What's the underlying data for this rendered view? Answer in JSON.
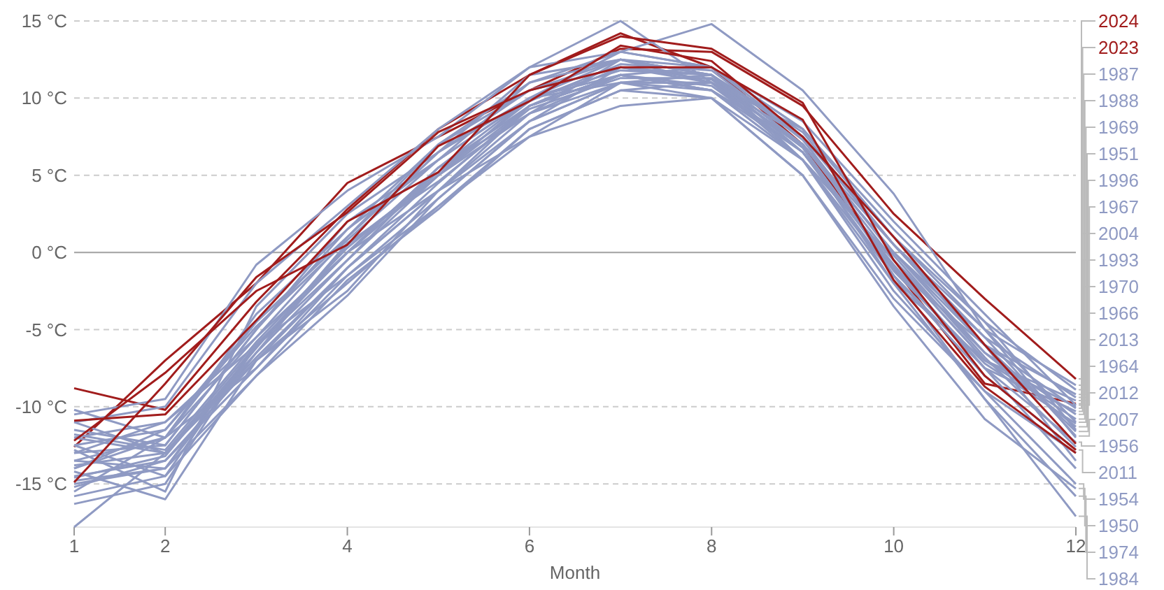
{
  "chart_data": {
    "type": "line",
    "xlabel": "Month",
    "x": [
      1,
      2,
      3,
      4,
      5,
      6,
      7,
      8,
      9,
      10,
      11,
      12
    ],
    "xlim": [
      1,
      12
    ],
    "xticks": [
      1,
      2,
      4,
      6,
      8,
      10,
      12
    ],
    "ylim": [
      -17.8,
      15
    ],
    "yticks": [
      {
        "value": -15,
        "label": "-15 °C"
      },
      {
        "value": -10,
        "label": "-10 °C"
      },
      {
        "value": -5,
        "label": "-5 °C"
      },
      {
        "value": 0,
        "label": "0 °C"
      },
      {
        "value": 5,
        "label": "5 °C"
      },
      {
        "value": 10,
        "label": "10 °C"
      },
      {
        "value": 15,
        "label": "15 °C"
      }
    ],
    "grid": "y",
    "legend": "right",
    "marker": "none",
    "line_style": "solid",
    "ref_lines": [
      {
        "axis": "y",
        "value": 0,
        "color": "#aaaaaa"
      }
    ],
    "series": [
      {
        "name": "2024",
        "color": "#a11c1c",
        "values": [
          -12.6,
          -7,
          -2,
          4.5,
          7.5,
          10.5,
          13.2,
          13,
          9.5,
          2.5,
          -3,
          -8.2
        ]
      },
      {
        "name": "2023",
        "color": "#a11c1c",
        "values": [
          -8.8,
          -10.2,
          -3.2,
          2.8,
          8,
          11.5,
          14.2,
          12,
          7,
          -1,
          -8.5,
          -9.8
        ]
      },
      {
        "color": "#8f9ac3",
        "values": [
          -10.5,
          -9.5,
          -0.8,
          4,
          7.5,
          12,
          15,
          11,
          8,
          1,
          -4.5,
          -11.5
        ]
      },
      {
        "color": "#8f9ac3",
        "values": [
          -11,
          -10,
          -2,
          3,
          8,
          12,
          13,
          14.8,
          10.5,
          3.8,
          -5,
          -12
        ]
      },
      {
        "color": "#8f9ac3",
        "values": [
          -14,
          -12,
          -5.5,
          0,
          4,
          7.5,
          9.5,
          10,
          5,
          -3,
          -9,
          -13
        ]
      },
      {
        "color": "#8f9ac3",
        "values": [
          -15.8,
          -14.5,
          -8,
          -1.8,
          2.8,
          8,
          10.5,
          10,
          6,
          -0.5,
          -7,
          -10
        ]
      },
      {
        "color": "#8f9ac3",
        "values": [
          -12.5,
          -11.5,
          -4.8,
          0.8,
          6,
          10,
          11.8,
          11.5,
          7.8,
          0.5,
          -6,
          -13.5
        ]
      },
      {
        "color": "#8f9ac3",
        "values": [
          -13.5,
          -14,
          -6,
          -0.5,
          5.5,
          9.5,
          11.5,
          10.8,
          6.5,
          -0.8,
          -7.5,
          -14
        ]
      },
      {
        "color": "#8f9ac3",
        "values": [
          -11.8,
          -12.8,
          -5.8,
          0.3,
          5.2,
          9.8,
          12.2,
          11.8,
          7.3,
          -0.2,
          -6.8,
          -12.6
        ]
      },
      {
        "color": "#8f9ac3",
        "values": [
          -14.6,
          -13.2,
          -6.2,
          0.6,
          4.6,
          9.3,
          11.3,
          11.3,
          6.8,
          -1.2,
          -7.2,
          -11.1
        ]
      },
      {
        "name": "1987",
        "color": "#8f9ac3",
        "values": [
          -13.5,
          -12,
          -4,
          1.5,
          6,
          10,
          12.5,
          11,
          7.5,
          0.5,
          -5,
          -8.6
        ]
      },
      {
        "name": "1988",
        "color": "#8f9ac3",
        "values": [
          -11,
          -13,
          -6,
          0,
          5,
          9.5,
          11.5,
          12,
          8,
          1.5,
          -4.5,
          -8.9
        ]
      },
      {
        "name": "1969",
        "color": "#8f9ac3",
        "values": [
          -14.5,
          -13.5,
          -7,
          -1,
          4,
          9,
          11,
          11.5,
          6.5,
          -1,
          -6,
          -9.2
        ]
      },
      {
        "name": "1951",
        "color": "#8f9ac3",
        "values": [
          -12,
          -11,
          -5.5,
          1,
          6.5,
          10.5,
          12,
          11,
          7,
          0,
          -5.5,
          -9.4
        ]
      },
      {
        "name": "1996",
        "color": "#8f9ac3",
        "values": [
          -15,
          -14,
          -6.5,
          -0.5,
          5,
          9,
          12.5,
          11.5,
          6,
          -0.5,
          -7,
          -9.6
        ]
      },
      {
        "name": "1967",
        "color": "#8f9ac3",
        "values": [
          -13,
          -12.5,
          -5,
          2,
          6,
          11,
          13,
          12,
          8.5,
          2,
          -4,
          -9.9
        ]
      },
      {
        "name": "2004",
        "color": "#8f9ac3",
        "values": [
          -14,
          -11.5,
          -4.5,
          1,
          6.5,
          10,
          11.5,
          10.5,
          7,
          0,
          -6,
          -10.1
        ]
      },
      {
        "name": "1993",
        "color": "#8f9ac3",
        "values": [
          -12.5,
          -14.5,
          -6,
          -1.5,
          3.5,
          8.5,
          11,
          11,
          6.5,
          -1.5,
          -7.5,
          -10.3
        ]
      },
      {
        "name": "1970",
        "color": "#8f9ac3",
        "values": [
          -15.5,
          -12,
          -7.5,
          -1,
          4.5,
          9.5,
          12,
          11.5,
          7,
          -0.5,
          -6.5,
          -10.5
        ]
      },
      {
        "name": "1966",
        "color": "#8f9ac3",
        "values": [
          -16.3,
          -15,
          -6,
          0,
          5.5,
          9,
          11.5,
          10.5,
          6,
          -2,
          -7,
          -10.8
        ]
      },
      {
        "name": "2013",
        "color": "#8f9ac3",
        "values": [
          -11.5,
          -12.5,
          -5,
          1.5,
          7,
          11,
          12.5,
          12,
          8,
          1,
          -5,
          -11
        ]
      },
      {
        "name": "1964",
        "color": "#8f9ac3",
        "values": [
          -13.8,
          -13,
          -6.5,
          0.5,
          5,
          10,
          11,
          11,
          7,
          0,
          -6.5,
          -11.3
        ]
      },
      {
        "name": "2012",
        "color": "#8f9ac3",
        "values": [
          -12.8,
          -15.5,
          -3.5,
          2.5,
          6.5,
          11.5,
          12.5,
          11.5,
          7.5,
          0.5,
          -6,
          -11.6
        ]
      },
      {
        "name": "2007",
        "color": "#8f9ac3",
        "values": [
          -10.2,
          -12,
          -4.5,
          1,
          7,
          10.5,
          12.5,
          11.5,
          7,
          0.5,
          -5.5,
          -11.9
        ]
      },
      {
        "name": "1956",
        "color": "#8f9ac3",
        "values": [
          -14.2,
          -16,
          -7,
          -2.5,
          4,
          9.5,
          11.5,
          10.5,
          6.5,
          -1,
          -7.5,
          -12.3
        ]
      },
      {
        "name": "2011",
        "color": "#8f9ac3",
        "values": [
          -13,
          -11,
          -6,
          0,
          5.5,
          10,
          13,
          12,
          7.5,
          -1.5,
          -8,
          -12.8
        ]
      },
      {
        "name": "1954",
        "color": "#8f9ac3",
        "values": [
          -15.2,
          -13.5,
          -7.5,
          -1.5,
          3,
          8,
          10.5,
          11,
          6,
          -2.5,
          -9,
          -15
        ]
      },
      {
        "name": "1950",
        "color": "#8f9ac3",
        "values": [
          -17.8,
          -13,
          -7,
          -2,
          3,
          7.5,
          11,
          10,
          5,
          -3.5,
          -10.8,
          -15.3
        ]
      },
      {
        "name": "1974",
        "color": "#8f9ac3",
        "values": [
          -14.8,
          -14,
          -8,
          -2.8,
          3.5,
          8.5,
          11,
          10.5,
          6,
          -1.5,
          -9.5,
          -15.8
        ]
      },
      {
        "name": "1984",
        "color": "#8f9ac3",
        "values": [
          -12,
          -13,
          -6.8,
          -1,
          4,
          8.5,
          12,
          11.2,
          6.8,
          -2,
          -9.5,
          -17.1
        ]
      },
      {
        "color": "#a11c1c",
        "values": [
          -10.9,
          -10.5,
          -4.4,
          2,
          5.2,
          11.5,
          14,
          13.2,
          9.7,
          -0.5,
          -8,
          -12.8
        ]
      },
      {
        "color": "#a11c1c",
        "values": [
          -14.9,
          -8.5,
          -1.6,
          2.6,
          7.8,
          10.5,
          12,
          12,
          8.6,
          -1.8,
          -8.7,
          -13
        ]
      },
      {
        "color": "#a11c1c",
        "values": [
          -12.2,
          -7.8,
          -2.5,
          0.5,
          6.9,
          9.8,
          13.4,
          12.4,
          7.5,
          1,
          -6,
          -12.4
        ]
      }
    ]
  }
}
